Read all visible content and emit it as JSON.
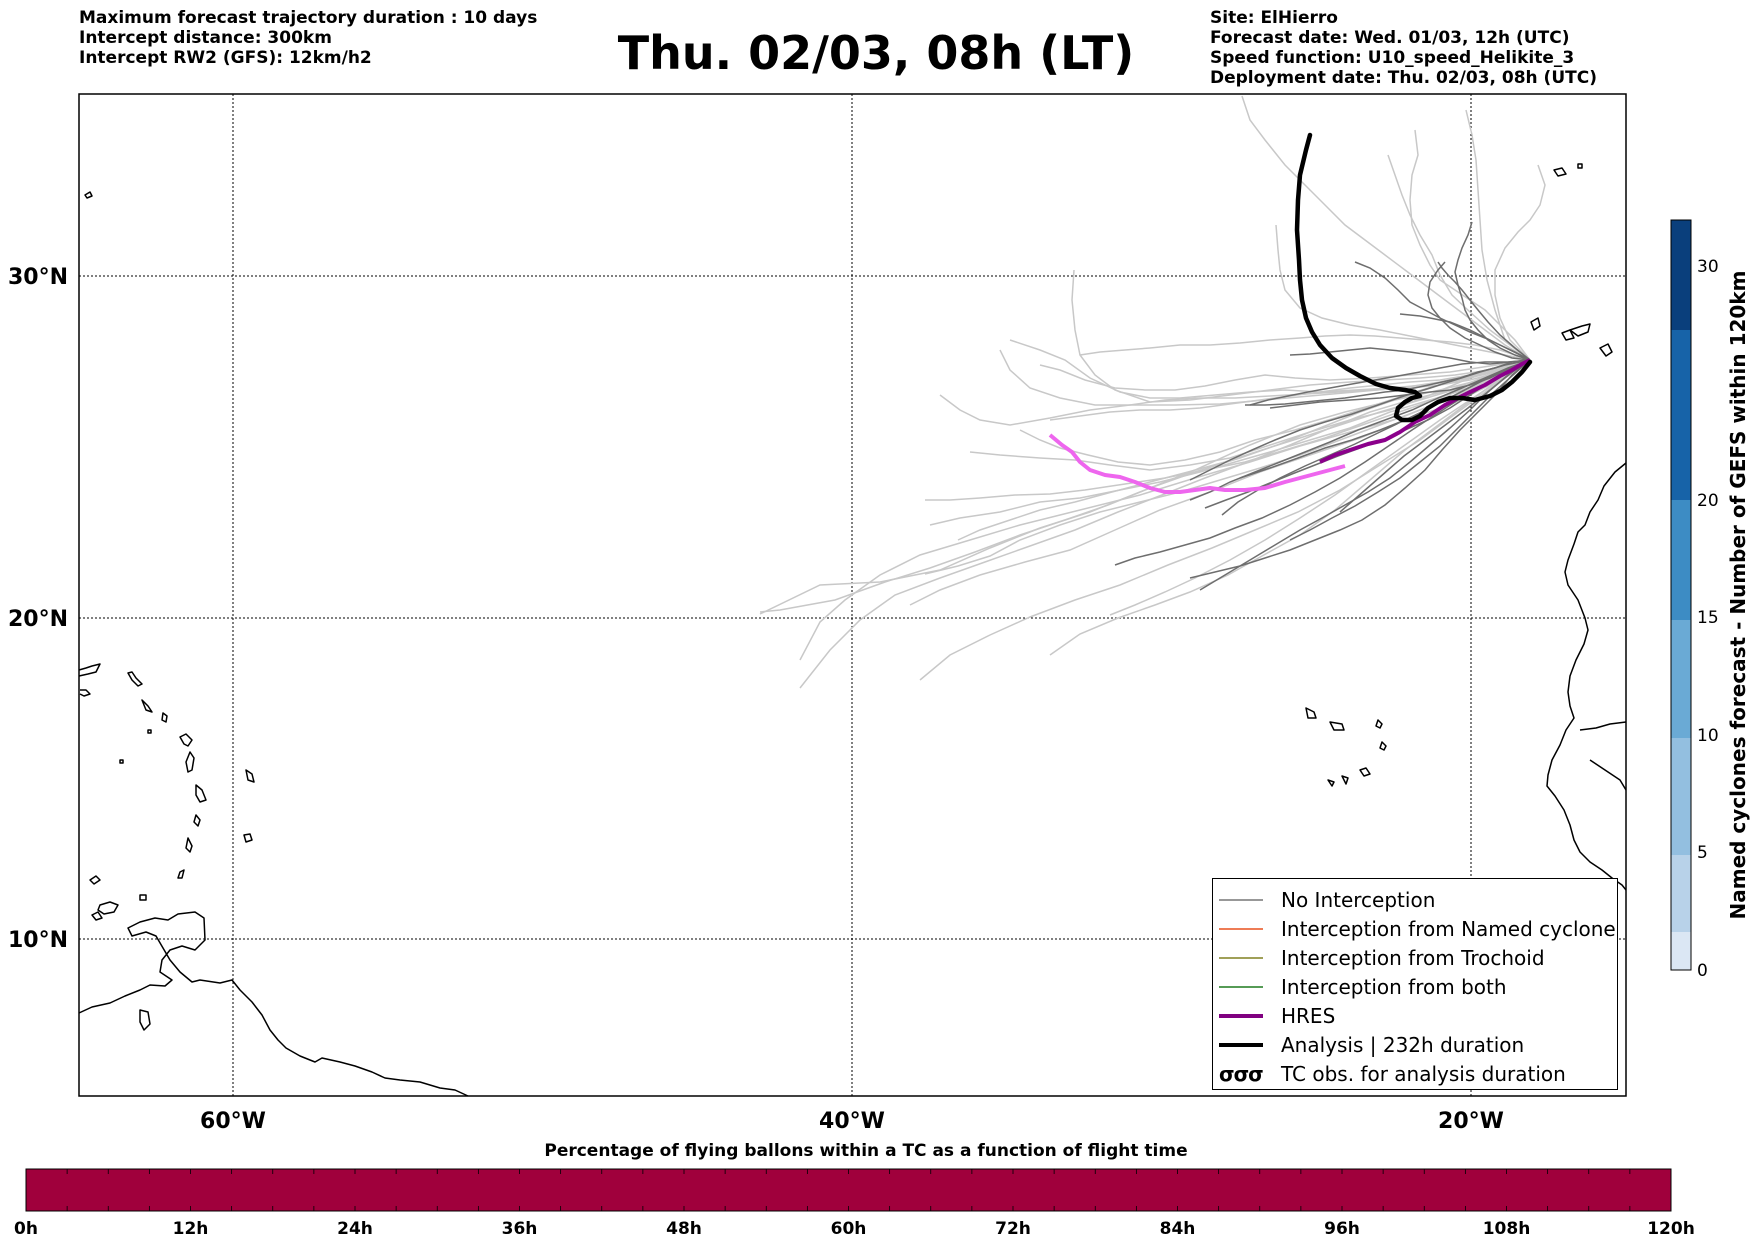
{
  "header_left": [
    "Maximum forecast trajectory duration : 10 days",
    "Intercept distance: 300km",
    "Intercept RW2 (GFS):  12km/h2"
  ],
  "title": "Thu. 02/03, 08h (LT)",
  "header_right": [
    "Site: ElHierro",
    "Forecast date: Wed. 01/03, 12h (UTC)",
    "Speed function: U10_speed_Helikite_3",
    "Deployment date: Thu. 02/03, 08h (UTC)"
  ],
  "map": {
    "lon_range": [
      -65,
      -15
    ],
    "lat_range": [
      5,
      35
    ],
    "lat_ticks": [
      "30°N",
      "20°N",
      "10°N"
    ],
    "lon_ticks": [
      "60°W",
      "40°W",
      "20°W"
    ]
  },
  "legend": {
    "items": [
      {
        "label": "No Interception",
        "color": "#777777",
        "style": "thin"
      },
      {
        "label": "Interception from Named cyclone",
        "color": "#e8501e",
        "style": "thin"
      },
      {
        "label": "Interception from Trochoid",
        "color": "#808020",
        "style": "thin"
      },
      {
        "label": "Interception from both",
        "color": "#1e7a1e",
        "style": "thin"
      },
      {
        "label": "HRES",
        "color": "#800080",
        "style": "thick"
      },
      {
        "label": "Analysis | 232h duration",
        "color": "#000000",
        "style": "thick"
      },
      {
        "label": "TC obs. for analysis duration",
        "glyph": "σσσ",
        "style": "glyph"
      }
    ]
  },
  "colorbar_right": {
    "label": "Named cyclones forecast - Number of GEFS within 120km",
    "ticks": [
      "0",
      "5",
      "10",
      "15",
      "20",
      "30"
    ],
    "tick_values": [
      0,
      5,
      10,
      15,
      20,
      30
    ],
    "max": 32,
    "colors": [
      "#dbe7f4",
      "#b8d2e9",
      "#93bfe0",
      "#6aaad5",
      "#3d8cc4",
      "#1763a8",
      "#0a3f7c"
    ]
  },
  "colorbar_bottom": {
    "title": "Percentage of flying ballons within a TC as a function of flight time",
    "ticks": [
      "0h",
      "12h",
      "24h",
      "36h",
      "48h",
      "60h",
      "72h",
      "84h",
      "96h",
      "108h",
      "120h"
    ],
    "color": "#a0003c"
  }
}
